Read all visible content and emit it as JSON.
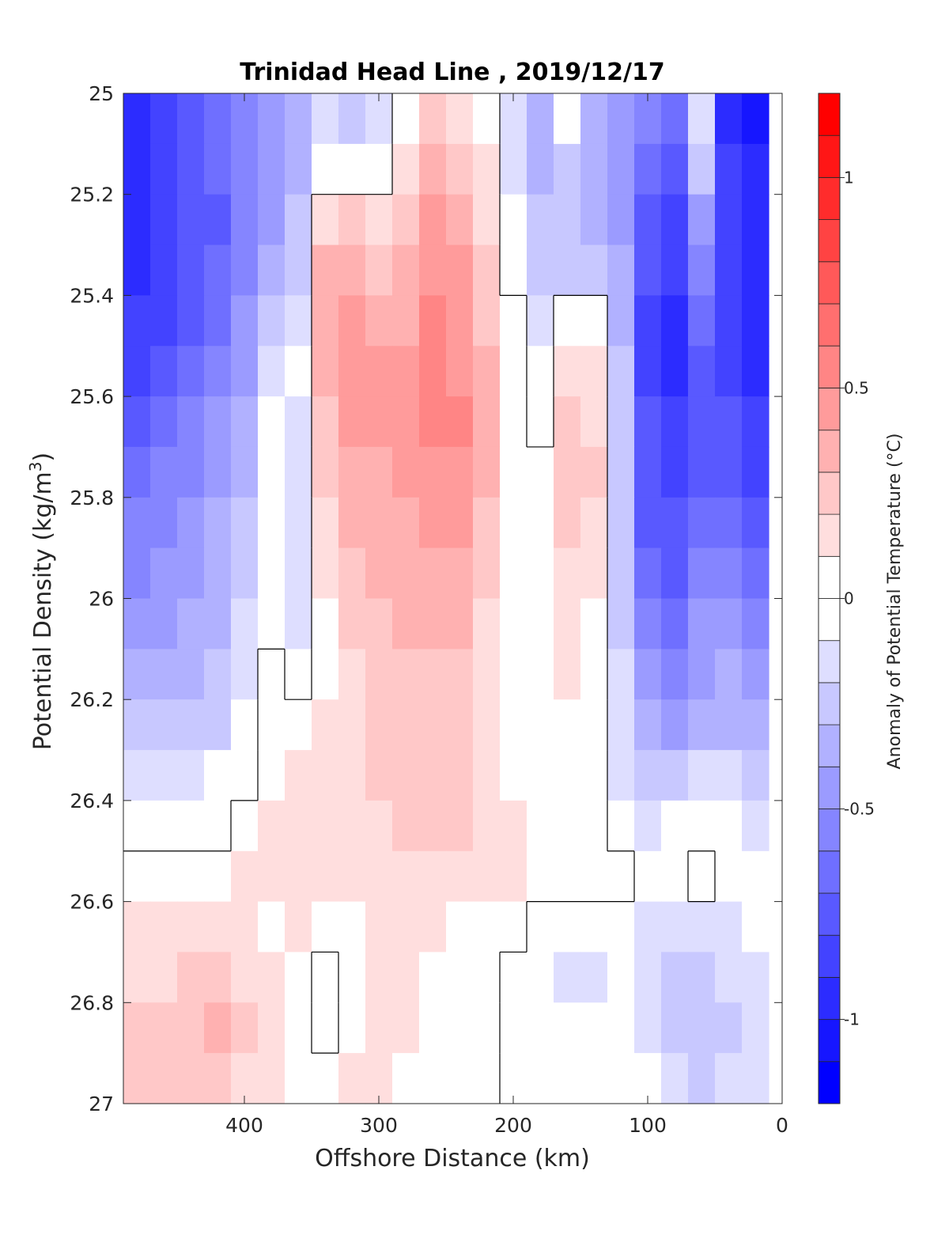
{
  "chart_data": {
    "type": "heatmap",
    "subtype": "filled-contour",
    "title": "Trinidad Head Line , 2019/12/17",
    "xlabel": "Offshore Distance (km)",
    "ylabel": "Potential Density (kg/m",
    "ylabel_superscript": "3",
    "ylabel_suffix": ")",
    "x_reversed": true,
    "y_reversed": true,
    "xlim": [
      490,
      0
    ],
    "ylim": [
      25,
      27
    ],
    "xticks": [
      400,
      300,
      200,
      100,
      0
    ],
    "yticks": [
      25,
      25.2,
      25.4,
      25.6,
      25.8,
      26,
      26.2,
      26.4,
      26.6,
      26.8,
      27
    ],
    "colorbar": {
      "label": "Anomaly of Potential Temperature (°C)",
      "range": [
        -1.2,
        1.2
      ],
      "step": 0.1,
      "ticks": [
        1,
        0.5,
        0,
        -0.5,
        -1
      ],
      "tick_labels": [
        "1",
        "0.5",
        "0",
        "-0.5",
        "-1"
      ],
      "colormap": "blue-white-red"
    },
    "x": [
      480,
      460,
      440,
      420,
      400,
      380,
      360,
      340,
      320,
      300,
      280,
      260,
      240,
      220,
      200,
      180,
      160,
      140,
      120,
      100,
      80,
      60,
      40,
      20
    ],
    "y": [
      25.0,
      25.1,
      25.2,
      25.3,
      25.4,
      25.5,
      25.6,
      25.7,
      25.8,
      25.9,
      26.0,
      26.1,
      26.2,
      26.3,
      26.4,
      26.5,
      26.6,
      26.7,
      26.8,
      26.9
    ],
    "z": [
      [
        -1.0,
        -0.9,
        -0.8,
        -0.7,
        -0.6,
        -0.5,
        -0.35,
        -0.15,
        -0.3,
        -0.2,
        0.05,
        0.2,
        0.15,
        0.05,
        -0.2,
        -0.35,
        -0.1,
        -0.4,
        -0.5,
        -0.6,
        -0.65,
        -0.2,
        -1.0,
        -1.1
      ],
      [
        -1.0,
        -0.9,
        -0.8,
        -0.7,
        -0.6,
        -0.5,
        -0.4,
        -0.05,
        -0.05,
        -0.05,
        0.15,
        0.3,
        0.25,
        0.1,
        -0.2,
        -0.35,
        -0.25,
        -0.4,
        -0.5,
        -0.65,
        -0.75,
        -0.3,
        -0.9,
        -1.0
      ],
      [
        -1.0,
        -0.9,
        -0.8,
        -0.75,
        -0.6,
        -0.45,
        -0.3,
        0.15,
        0.2,
        0.1,
        0.25,
        0.4,
        0.35,
        0.15,
        -0.1,
        -0.3,
        -0.3,
        -0.35,
        -0.45,
        -0.75,
        -0.85,
        -0.5,
        -0.9,
        -1.0
      ],
      [
        -0.95,
        -0.9,
        -0.8,
        -0.7,
        -0.55,
        -0.4,
        -0.25,
        0.3,
        0.35,
        0.25,
        0.3,
        0.45,
        0.4,
        0.2,
        -0.05,
        -0.25,
        -0.25,
        -0.3,
        -0.4,
        -0.8,
        -0.9,
        -0.6,
        -0.9,
        -1.0
      ],
      [
        -0.9,
        -0.85,
        -0.75,
        -0.65,
        -0.5,
        -0.3,
        -0.15,
        0.35,
        0.45,
        0.35,
        0.35,
        0.5,
        0.45,
        0.25,
        0.0,
        -0.2,
        0.05,
        0.0,
        -0.35,
        -0.85,
        -0.95,
        -0.7,
        -0.85,
        -0.95
      ],
      [
        -0.85,
        -0.8,
        -0.7,
        -0.6,
        -0.45,
        -0.2,
        -0.1,
        0.3,
        0.45,
        0.4,
        0.4,
        0.5,
        0.45,
        0.3,
        0.05,
        -0.1,
        0.15,
        0.1,
        -0.3,
        -0.85,
        -0.95,
        -0.75,
        -0.85,
        -0.95
      ],
      [
        -0.75,
        -0.7,
        -0.6,
        -0.5,
        -0.4,
        -0.05,
        -0.15,
        0.25,
        0.4,
        0.4,
        0.45,
        0.5,
        0.5,
        0.3,
        0.05,
        -0.05,
        0.2,
        0.15,
        -0.25,
        -0.8,
        -0.9,
        -0.75,
        -0.8,
        -0.9
      ],
      [
        -0.65,
        -0.6,
        -0.55,
        -0.45,
        -0.35,
        -0.05,
        -0.15,
        0.2,
        0.35,
        0.35,
        0.4,
        0.45,
        0.45,
        0.3,
        0.05,
        0.0,
        0.25,
        0.2,
        -0.25,
        -0.8,
        -0.85,
        -0.75,
        -0.75,
        -0.85
      ],
      [
        -0.6,
        -0.55,
        -0.5,
        -0.4,
        -0.3,
        -0.05,
        -0.2,
        0.15,
        0.3,
        0.35,
        0.35,
        0.4,
        0.4,
        0.25,
        0.05,
        0.0,
        0.2,
        0.15,
        -0.25,
        -0.75,
        -0.8,
        -0.7,
        -0.7,
        -0.8
      ],
      [
        -0.55,
        -0.5,
        -0.45,
        -0.4,
        -0.25,
        -0.05,
        -0.2,
        0.1,
        0.25,
        0.3,
        0.3,
        0.35,
        0.35,
        0.2,
        0.05,
        0.0,
        0.15,
        0.1,
        -0.3,
        -0.7,
        -0.75,
        -0.6,
        -0.6,
        -0.7
      ],
      [
        -0.5,
        -0.45,
        -0.4,
        -0.35,
        -0.2,
        -0.05,
        -0.15,
        0.05,
        0.2,
        0.25,
        0.3,
        0.3,
        0.3,
        0.15,
        0.05,
        0.0,
        0.1,
        0.05,
        -0.25,
        -0.6,
        -0.65,
        -0.5,
        -0.5,
        -0.55
      ],
      [
        -0.4,
        -0.4,
        -0.35,
        -0.3,
        -0.15,
        0.05,
        -0.05,
        0.05,
        0.15,
        0.2,
        0.25,
        0.25,
        0.25,
        0.15,
        0.05,
        0.05,
        0.1,
        0.05,
        -0.2,
        -0.5,
        -0.55,
        -0.45,
        -0.4,
        -0.45
      ],
      [
        -0.3,
        -0.3,
        -0.25,
        -0.25,
        -0.1,
        0.05,
        0.05,
        0.1,
        0.1,
        0.2,
        0.2,
        0.25,
        0.2,
        0.1,
        0.05,
        0.05,
        0.0,
        0.05,
        -0.2,
        -0.4,
        -0.45,
        -0.4,
        -0.35,
        -0.35
      ],
      [
        -0.2,
        -0.2,
        -0.15,
        -0.1,
        -0.05,
        0.05,
        0.1,
        0.1,
        0.15,
        0.2,
        0.2,
        0.2,
        0.2,
        0.15,
        0.05,
        0.05,
        0.05,
        0.05,
        -0.15,
        -0.3,
        -0.3,
        -0.2,
        -0.2,
        -0.25
      ],
      [
        -0.05,
        -0.05,
        -0.1,
        -0.05,
        0.05,
        0.1,
        0.15,
        0.1,
        0.15,
        0.15,
        0.2,
        0.2,
        0.2,
        0.1,
        0.1,
        0.05,
        0.05,
        0.05,
        -0.05,
        -0.15,
        -0.1,
        -0.05,
        -0.1,
        -0.15
      ],
      [
        0.05,
        0.05,
        0.05,
        0.05,
        0.1,
        0.1,
        0.15,
        0.1,
        0.1,
        0.1,
        0.15,
        0.15,
        0.15,
        0.1,
        0.1,
        0.05,
        0.05,
        0.0,
        0.0,
        -0.05,
        -0.1,
        0.05,
        -0.05,
        -0.1
      ],
      [
        0.1,
        0.1,
        0.15,
        0.15,
        0.1,
        0.05,
        0.1,
        0.05,
        0.05,
        0.1,
        0.1,
        0.1,
        0.05,
        0.05,
        0.0,
        -0.05,
        -0.05,
        -0.1,
        -0.05,
        -0.15,
        -0.2,
        -0.2,
        -0.15,
        -0.1
      ],
      [
        0.15,
        0.15,
        0.2,
        0.25,
        0.15,
        0.1,
        0.05,
        -0.05,
        0.05,
        0.1,
        0.1,
        0.05,
        0.05,
        0.0,
        -0.05,
        -0.1,
        -0.15,
        -0.15,
        -0.1,
        -0.2,
        -0.25,
        -0.25,
        -0.2,
        -0.15
      ],
      [
        0.2,
        0.2,
        0.25,
        0.3,
        0.2,
        0.15,
        0.05,
        -0.05,
        0.05,
        0.1,
        0.1,
        0.05,
        0.0,
        0.0,
        -0.05,
        -0.1,
        -0.1,
        -0.1,
        -0.1,
        -0.2,
        -0.3,
        -0.3,
        -0.25,
        -0.2
      ],
      [
        0.2,
        0.2,
        0.2,
        0.25,
        0.15,
        0.1,
        0.05,
        0.05,
        0.1,
        0.1,
        0.05,
        0.0,
        0.0,
        0.0,
        -0.05,
        -0.1,
        -0.05,
        -0.05,
        -0.05,
        -0.1,
        -0.2,
        -0.25,
        -0.2,
        -0.15
      ]
    ],
    "zero_contour_color": "#000000",
    "grid": false
  },
  "colors": {
    "cold": "#0000ff",
    "neutral": "#ffffff",
    "warm": "#ff0000",
    "axis": "#262626"
  }
}
